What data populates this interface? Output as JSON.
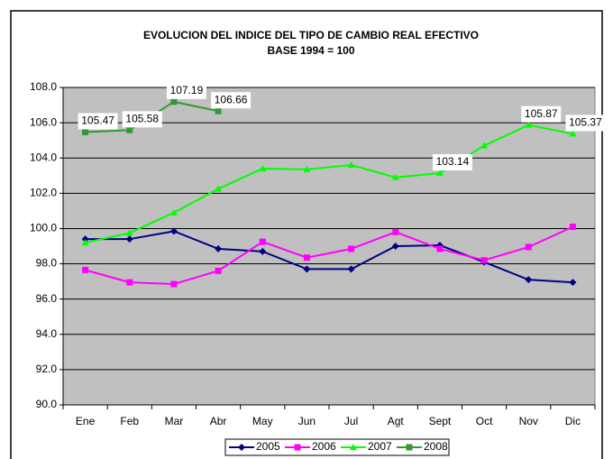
{
  "chart_data": {
    "type": "line",
    "title": "EVOLUCION DEL INDICE DEL TIPO DE CAMBIO REAL EFECTIVO",
    "subtitle": "BASE 1994 = 100",
    "categories": [
      "Ene",
      "Feb",
      "Mar",
      "Abr",
      "May",
      "Jun",
      "Jul",
      "Agt",
      "Sept",
      "Oct",
      "Nov",
      "Dic"
    ],
    "series": [
      {
        "name": "2005",
        "color": "#000080",
        "marker": "diamond",
        "values": [
          99.4,
          99.4,
          99.85,
          98.85,
          98.7,
          97.7,
          97.7,
          99.0,
          99.05,
          98.1,
          97.1,
          96.95
        ]
      },
      {
        "name": "2006",
        "color": "#ff00ff",
        "marker": "square",
        "values": [
          97.65,
          96.95,
          96.85,
          97.6,
          99.25,
          98.35,
          98.85,
          99.8,
          98.85,
          98.2,
          98.95,
          100.1
        ]
      },
      {
        "name": "2007",
        "color": "#00ff00",
        "marker": "triangle",
        "values": [
          99.2,
          99.75,
          100.9,
          102.25,
          103.4,
          103.35,
          103.6,
          102.9,
          103.14,
          104.7,
          105.87,
          105.37
        ],
        "value_labels": [
          null,
          null,
          null,
          null,
          null,
          null,
          null,
          null,
          "103.14",
          null,
          "105.87",
          "105.37"
        ]
      },
      {
        "name": "2008",
        "color": "#339933",
        "marker": "square",
        "values": [
          105.47,
          105.58,
          107.19,
          106.66,
          null,
          null,
          null,
          null,
          null,
          null,
          null,
          null
        ],
        "value_labels": [
          "105.47",
          "105.58",
          "107.19",
          "106.66",
          null,
          null,
          null,
          null,
          null,
          null,
          null,
          null
        ]
      }
    ],
    "ylim": [
      90,
      108
    ],
    "yticks": [
      {
        "value": 90,
        "label": "90.0"
      },
      {
        "value": 92,
        "label": "92.0"
      },
      {
        "value": 94,
        "label": "94.0"
      },
      {
        "value": 96,
        "label": "96.0"
      },
      {
        "value": 98,
        "label": "98.0"
      },
      {
        "value": 100,
        "label": "100.0"
      },
      {
        "value": 102,
        "label": "102.0"
      },
      {
        "value": 104,
        "label": "104.0"
      },
      {
        "value": 106,
        "label": "106.0"
      },
      {
        "value": 108,
        "label": "108.0"
      }
    ],
    "grid": true,
    "legend": "bottom",
    "plot_background": "#c0c0c0"
  }
}
